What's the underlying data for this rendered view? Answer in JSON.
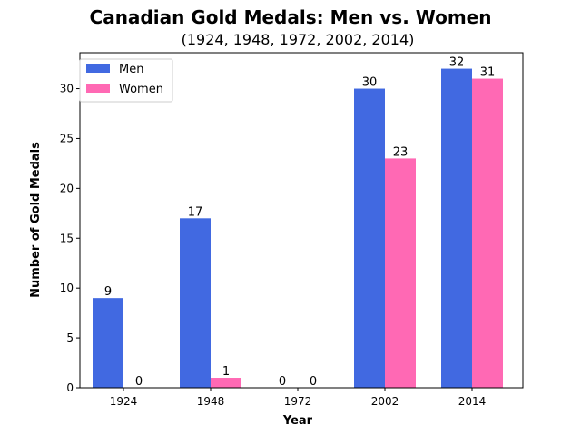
{
  "chart_data": {
    "type": "bar",
    "title": "Canadian Gold Medals: Men vs. Women",
    "subtitle": "(1924, 1948, 1972, 2002, 2014)",
    "xlabel": "Year",
    "ylabel": "Number of Gold Medals",
    "categories": [
      "1924",
      "1948",
      "1972",
      "2002",
      "2014"
    ],
    "series": [
      {
        "name": "Men",
        "values": [
          9,
          17,
          0,
          30,
          32
        ],
        "color": "#4169e1"
      },
      {
        "name": "Women",
        "values": [
          0,
          1,
          0,
          23,
          31
        ],
        "color": "#ff69b4"
      }
    ],
    "ylim": [
      0,
      33.6
    ],
    "yticks": [
      0,
      5,
      10,
      15,
      20,
      25,
      30
    ],
    "grid": false,
    "legend_position": "top-left"
  }
}
